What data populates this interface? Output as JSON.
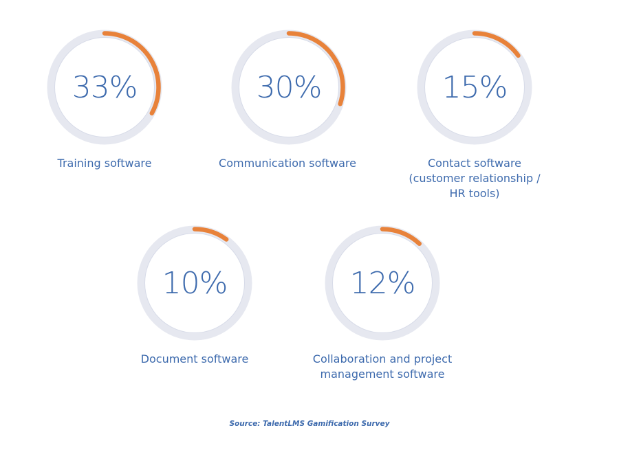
{
  "chart_data": {
    "type": "donut",
    "items": [
      {
        "label": "Training software",
        "value": 33,
        "display": "33%"
      },
      {
        "label": "Communication software",
        "value": 30,
        "display": "30%"
      },
      {
        "label": "Contact software\n(customer relationship /\nHR tools)",
        "value": 15,
        "display": "15%"
      },
      {
        "label": "Document software",
        "value": 10,
        "display": "10%"
      },
      {
        "label": "Collaboration and project\nmanagement software",
        "value": 12,
        "display": "12%"
      }
    ],
    "colors": {
      "progress": "#e8823a",
      "track": "#e6e8f0",
      "text": "#3d6aad"
    }
  },
  "footer": {
    "source": "Source: TalentLMS Gamification Survey"
  }
}
